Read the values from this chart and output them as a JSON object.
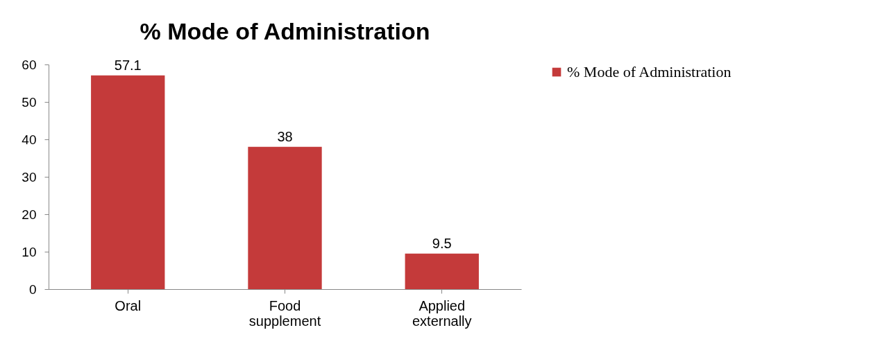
{
  "chart_data": {
    "type": "bar",
    "title": "% Mode of Administration",
    "categories": [
      "Oral",
      "Food supplement",
      "Applied externally"
    ],
    "series": [
      {
        "name": "% Mode of Administration",
        "color": "#c43a3a",
        "values": [
          57.1,
          38,
          9.5
        ]
      }
    ],
    "ylim": [
      0,
      60
    ],
    "yticks": [
      0,
      10,
      20,
      30,
      40,
      50,
      60
    ],
    "grid": false,
    "legend": "right",
    "data_labels": true
  }
}
